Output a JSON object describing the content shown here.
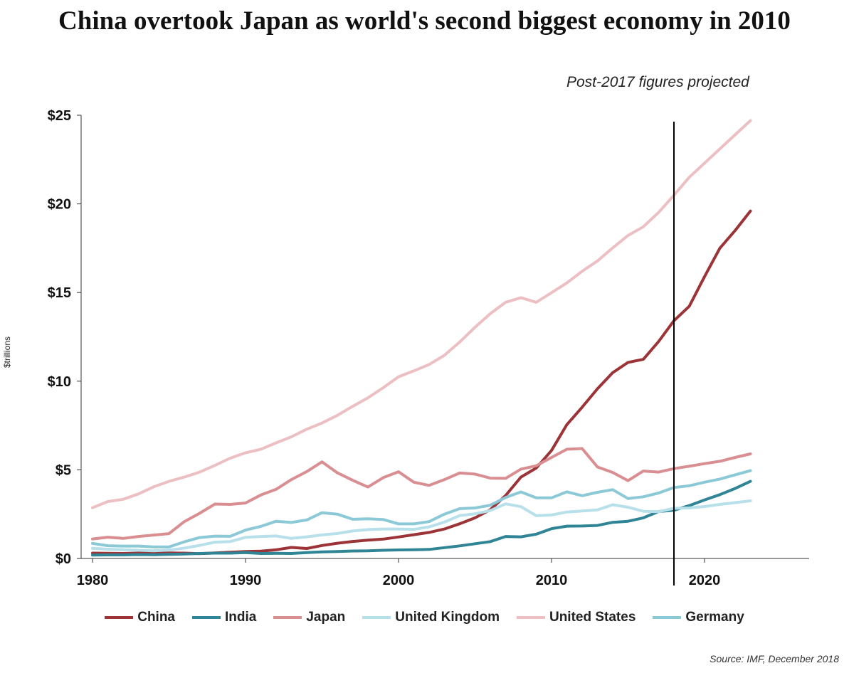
{
  "title": "China overtook Japan as world's second biggest economy in 2010",
  "note": "Post-2017 figures projected",
  "source": "Source: IMF, December 2018",
  "chart_data": {
    "type": "line",
    "title": "China overtook Japan as world's second biggest economy in 2010",
    "ylabel": "$trillions",
    "xlim": [
      1980,
      2027
    ],
    "ylim": [
      0,
      25
    ],
    "x_ticks": [
      1980,
      1990,
      2000,
      2010,
      2020
    ],
    "y_ticks": [
      0,
      5,
      10,
      15,
      20,
      25
    ],
    "y_tick_labels": [
      "$0",
      "$5",
      "$10",
      "$15",
      "$20",
      "$25"
    ],
    "grid": false,
    "legend_position": "bottom",
    "annotation_line_x": 2018,
    "x": [
      1980,
      1981,
      1982,
      1983,
      1984,
      1985,
      1986,
      1987,
      1988,
      1989,
      1990,
      1991,
      1992,
      1993,
      1994,
      1995,
      1996,
      1997,
      1998,
      1999,
      2000,
      2001,
      2002,
      2003,
      2004,
      2005,
      2006,
      2007,
      2008,
      2009,
      2010,
      2011,
      2012,
      2013,
      2014,
      2015,
      2016,
      2017,
      2018,
      2019,
      2020,
      2021,
      2022,
      2023
    ],
    "series": [
      {
        "name": "China",
        "color": "#9b3337",
        "values": [
          0.3,
          0.29,
          0.28,
          0.3,
          0.31,
          0.31,
          0.3,
          0.27,
          0.31,
          0.35,
          0.39,
          0.41,
          0.49,
          0.62,
          0.56,
          0.73,
          0.86,
          0.96,
          1.03,
          1.09,
          1.21,
          1.34,
          1.47,
          1.66,
          1.96,
          2.29,
          2.75,
          3.55,
          4.59,
          5.1,
          6.09,
          7.55,
          8.53,
          9.57,
          10.48,
          11.06,
          11.23,
          12.24,
          13.41,
          14.22,
          15.9,
          17.5,
          18.5,
          19.6
        ]
      },
      {
        "name": "India",
        "color": "#2f8595",
        "values": [
          0.19,
          0.2,
          0.2,
          0.22,
          0.21,
          0.23,
          0.25,
          0.28,
          0.3,
          0.3,
          0.33,
          0.28,
          0.29,
          0.28,
          0.33,
          0.37,
          0.39,
          0.42,
          0.43,
          0.46,
          0.48,
          0.49,
          0.51,
          0.61,
          0.71,
          0.83,
          0.95,
          1.24,
          1.22,
          1.37,
          1.68,
          1.82,
          1.83,
          1.86,
          2.04,
          2.1,
          2.29,
          2.65,
          2.72,
          2.98,
          3.3,
          3.6,
          3.95,
          4.35
        ]
      },
      {
        "name": "Japan",
        "color": "#d98e91",
        "values": [
          1.1,
          1.2,
          1.13,
          1.24,
          1.32,
          1.4,
          2.08,
          2.55,
          3.07,
          3.05,
          3.13,
          3.58,
          3.9,
          4.45,
          4.9,
          5.45,
          4.83,
          4.41,
          4.03,
          4.56,
          4.89,
          4.3,
          4.12,
          4.45,
          4.82,
          4.76,
          4.53,
          4.52,
          5.04,
          5.23,
          5.7,
          6.16,
          6.2,
          5.16,
          4.85,
          4.39,
          4.93,
          4.87,
          5.07,
          5.2,
          5.35,
          5.48,
          5.7,
          5.9
        ]
      },
      {
        "name": "United Kingdom",
        "color": "#b7e0ea",
        "values": [
          0.57,
          0.52,
          0.49,
          0.46,
          0.43,
          0.47,
          0.58,
          0.74,
          0.92,
          0.95,
          1.19,
          1.24,
          1.27,
          1.13,
          1.22,
          1.33,
          1.41,
          1.55,
          1.63,
          1.66,
          1.66,
          1.64,
          1.78,
          2.05,
          2.42,
          2.52,
          2.7,
          3.08,
          2.92,
          2.41,
          2.45,
          2.62,
          2.68,
          2.74,
          3.03,
          2.89,
          2.66,
          2.64,
          2.83,
          2.85,
          2.93,
          3.05,
          3.15,
          3.25
        ]
      },
      {
        "name": "United States",
        "color": "#ecbfc2",
        "values": [
          2.86,
          3.21,
          3.34,
          3.64,
          4.04,
          4.35,
          4.59,
          4.87,
          5.25,
          5.66,
          5.96,
          6.16,
          6.52,
          6.86,
          7.29,
          7.64,
          8.07,
          8.58,
          9.06,
          9.63,
          10.25,
          10.58,
          10.94,
          11.46,
          12.21,
          13.04,
          13.81,
          14.45,
          14.71,
          14.45,
          14.99,
          15.54,
          16.2,
          16.78,
          17.52,
          18.22,
          18.71,
          19.52,
          20.49,
          21.5,
          22.3,
          23.1,
          23.9,
          24.7
        ]
      },
      {
        "name": "Germany",
        "color": "#8bc9d7",
        "values": [
          0.85,
          0.72,
          0.7,
          0.7,
          0.65,
          0.65,
          0.94,
          1.18,
          1.26,
          1.25,
          1.6,
          1.81,
          2.1,
          2.03,
          2.17,
          2.58,
          2.5,
          2.21,
          2.24,
          2.2,
          1.95,
          1.95,
          2.08,
          2.5,
          2.81,
          2.85,
          3.0,
          3.44,
          3.75,
          3.42,
          3.42,
          3.76,
          3.54,
          3.73,
          3.88,
          3.38,
          3.48,
          3.69,
          4.0,
          4.1,
          4.3,
          4.48,
          4.72,
          4.95
        ]
      }
    ]
  }
}
